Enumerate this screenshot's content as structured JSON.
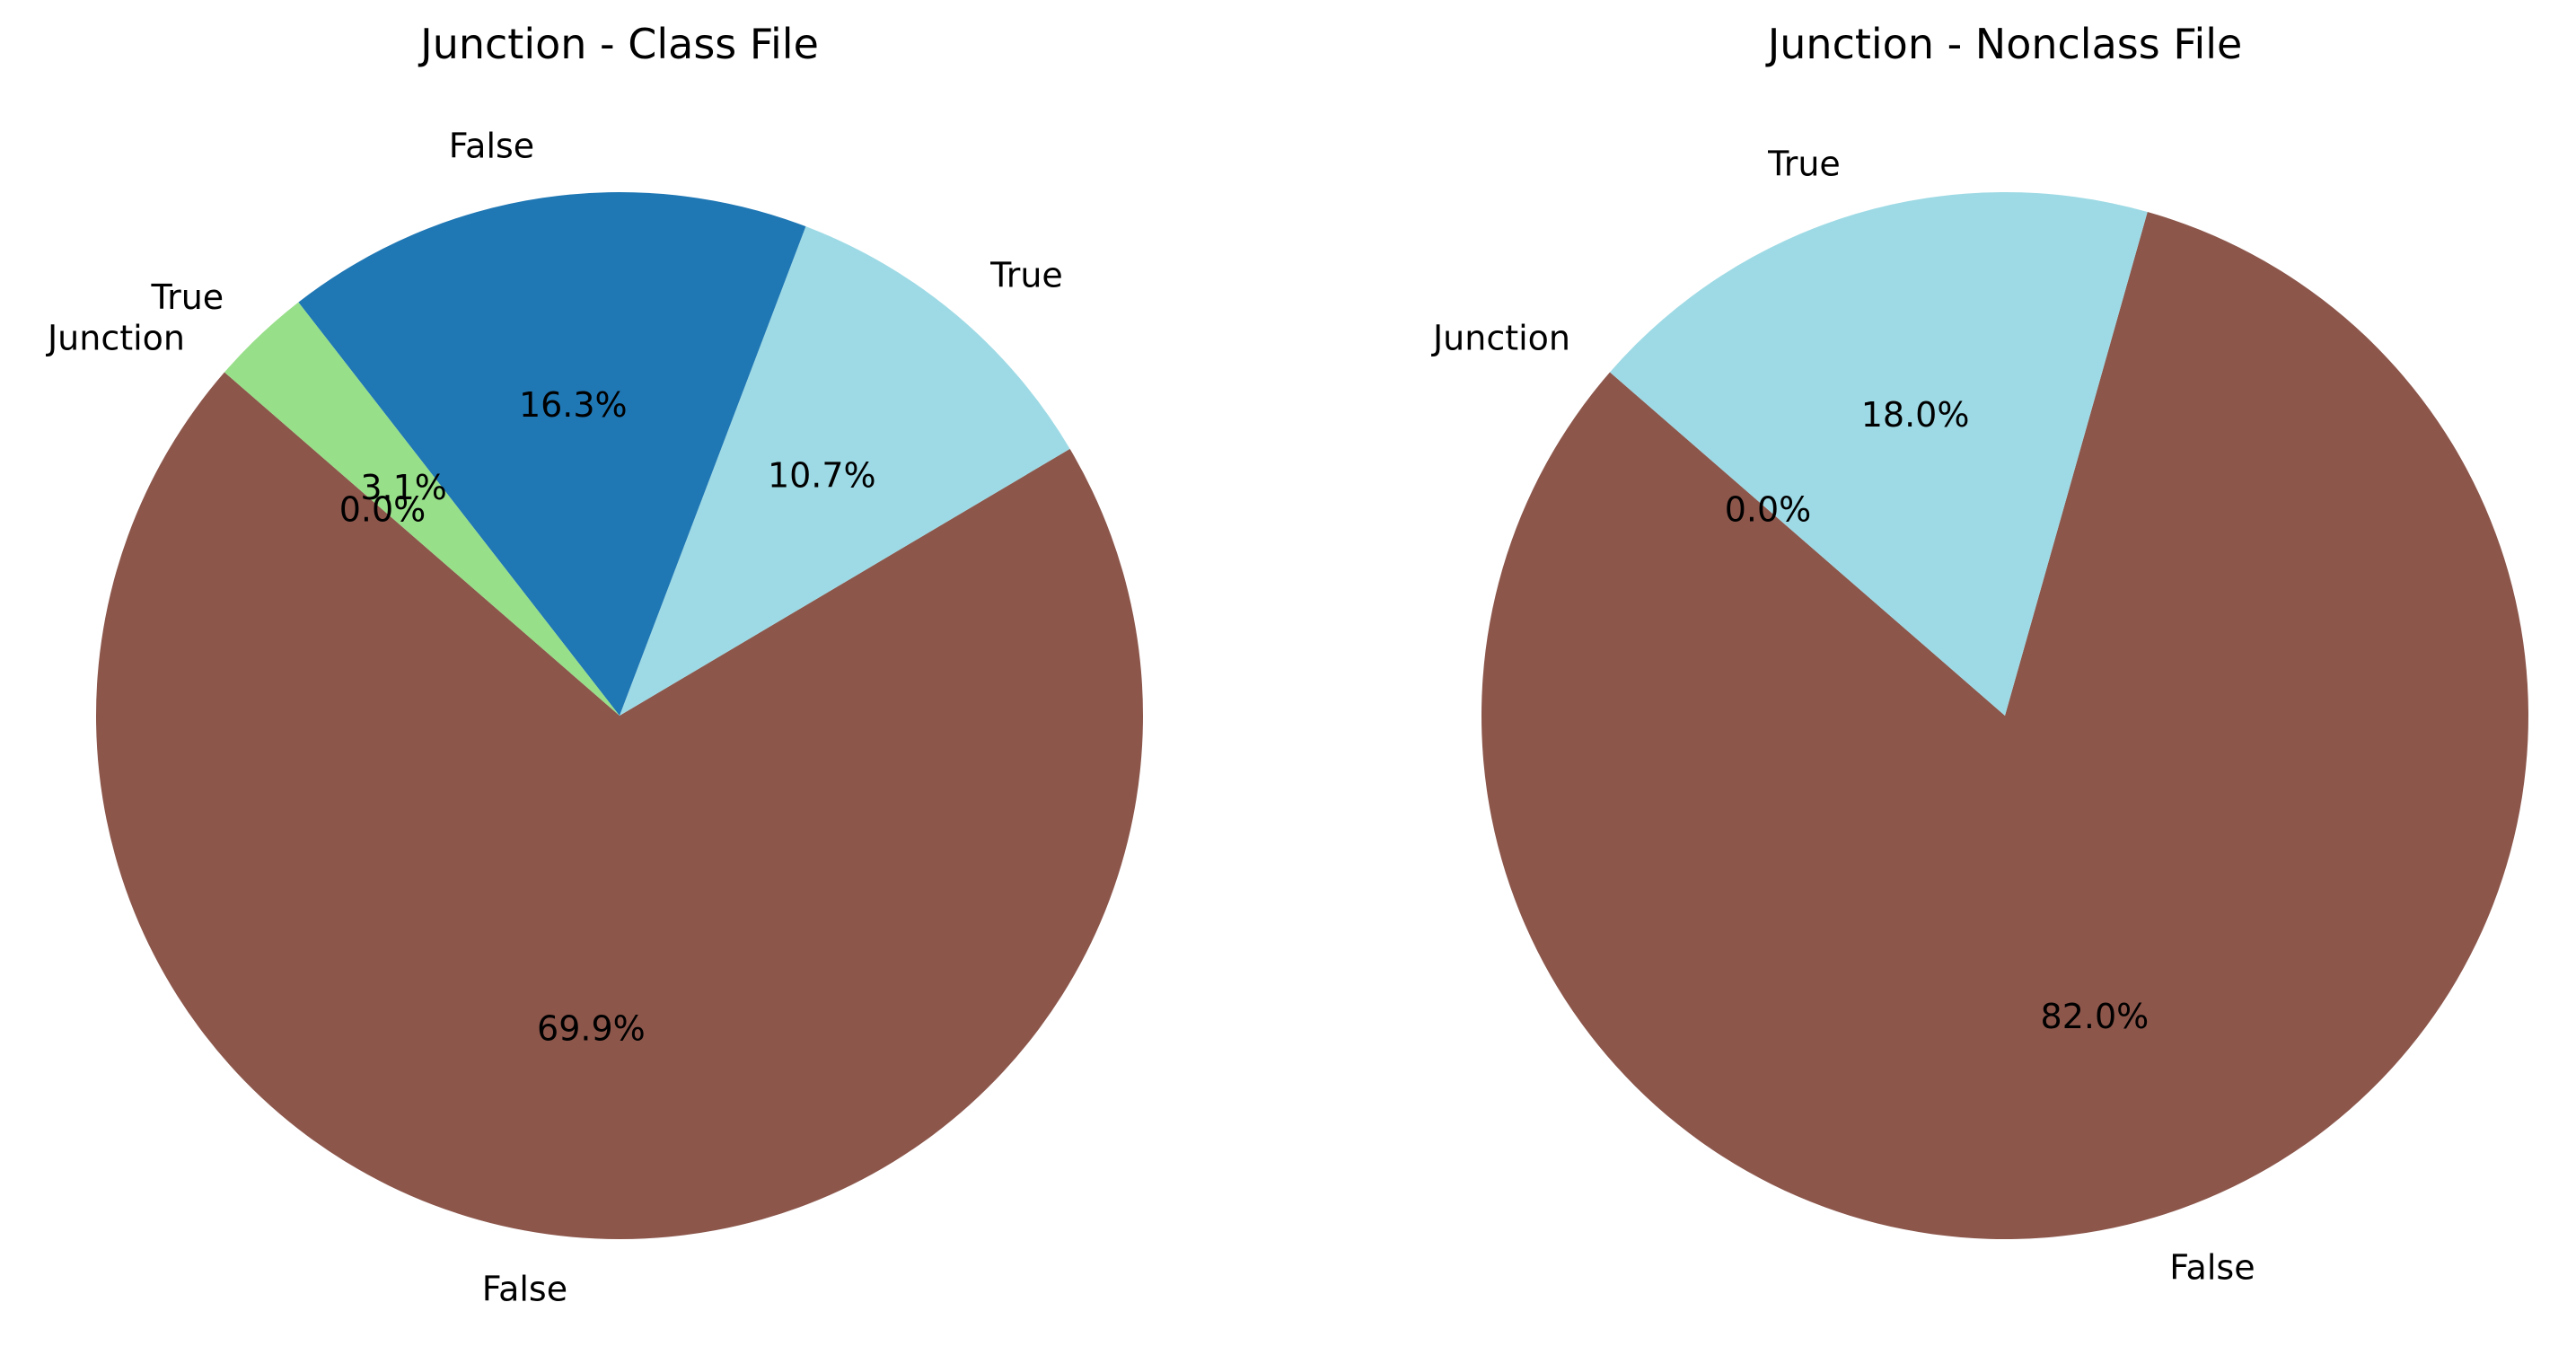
{
  "chart_data": [
    {
      "type": "pie",
      "title": "Junction - Class File",
      "start_angle_deg": 139,
      "direction": "counterclockwise",
      "slices": [
        {
          "label": "Junction",
          "pct_label": "0.0%",
          "value": 0.0,
          "color": "#1f77b4"
        },
        {
          "label": "False",
          "pct_label": "69.9%",
          "value": 69.9,
          "color": "#8c564b"
        },
        {
          "label": "True",
          "pct_label": "10.7%",
          "value": 10.7,
          "color": "#9edae5"
        },
        {
          "label": "False",
          "pct_label": "16.3%",
          "value": 16.3,
          "color": "#1f77b4"
        },
        {
          "label": "True",
          "pct_label": "3.1%",
          "value": 3.1,
          "color": "#98df8a"
        }
      ]
    },
    {
      "type": "pie",
      "title": "Junction - Nonclass File",
      "start_angle_deg": 139,
      "direction": "counterclockwise",
      "slices": [
        {
          "label": "Junction",
          "pct_label": "0.0%",
          "value": 0.0,
          "color": "#1f77b4"
        },
        {
          "label": "False",
          "pct_label": "82.0%",
          "value": 82.0,
          "color": "#8c564b"
        },
        {
          "label": "True",
          "pct_label": "18.0%",
          "value": 18.0,
          "color": "#9edae5"
        }
      ]
    }
  ]
}
